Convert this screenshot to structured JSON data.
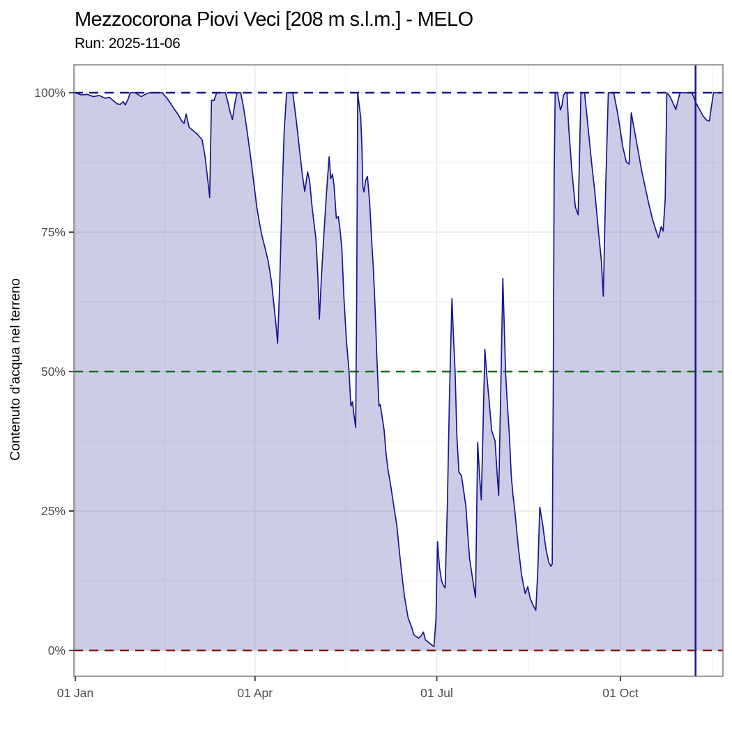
{
  "header": {
    "title": "Mezzocorona Piovi Veci [208 m s.l.m.] - MELO",
    "subtitle": "Run: 2025-11-06"
  },
  "colors": {
    "series_line": "#17178f",
    "series_fill": "rgba(22,22,143,0.22)",
    "threshold_100": "#17178f",
    "threshold_50": "#156e15",
    "threshold_0": "#8e1111",
    "run_date_line": "#17178f",
    "grid_major": "#e4e4e4",
    "grid_minor": "#f1f1f1",
    "panel_border": "#7e7e7e",
    "tick_mark": "#333333",
    "axis_text": "#4d4d4d",
    "title_text": "#000000",
    "panel_background": "#ffffff"
  },
  "chart_data": {
    "type": "area",
    "title": "Mezzocorona Piovi Veci [208 m s.l.m.] - MELO",
    "subtitle": "Run: 2025-11-06",
    "xlabel": "",
    "ylabel": "Contenuto d'acqua nel terreno",
    "x_unit": "day of year 2025 (0 = 01 Jan)",
    "x_range_days": [
      -0.7,
      324.4
    ],
    "ylim": [
      0,
      100
    ],
    "y_display_range": [
      -4.4,
      105
    ],
    "grid": true,
    "legend": "none",
    "x_ticks": [
      {
        "day": 0,
        "label": "01 Jan"
      },
      {
        "day": 90,
        "label": "01 Apr"
      },
      {
        "day": 181,
        "label": "01 Jul"
      },
      {
        "day": 273,
        "label": "01 Oct"
      }
    ],
    "x_minor_days": [
      45,
      135.5,
      227,
      319
    ],
    "y_ticks": [
      {
        "value": 0,
        "label": "0%"
      },
      {
        "value": 25,
        "label": "25%"
      },
      {
        "value": 50,
        "label": "50%"
      },
      {
        "value": 75,
        "label": "75%"
      },
      {
        "value": 100,
        "label": "100%"
      }
    ],
    "y_minor_values": [
      12.5,
      37.5,
      62.5,
      87.5
    ],
    "reference_lines": {
      "horizontal": [
        {
          "name": "saturation-100pct",
          "value": 100,
          "color": "#17178f",
          "style": "dashed"
        },
        {
          "name": "threshold-50pct",
          "value": 50,
          "color": "#156e15",
          "style": "dashed"
        },
        {
          "name": "threshold-0pct",
          "value": 0,
          "color": "#8e1111",
          "style": "dashed"
        }
      ],
      "vertical": [
        {
          "name": "run-date-line",
          "day": 310.6,
          "color": "#17178f",
          "style": "solid"
        }
      ]
    },
    "series": [
      {
        "name": "contenuto-acqua-terreno",
        "color": "#17178f",
        "fill": "rgba(22,22,143,0.22)",
        "points": [
          [
            -0.7,
            99.9
          ],
          [
            0,
            100
          ],
          [
            3,
            99.6
          ],
          [
            6,
            99.7
          ],
          [
            9,
            99.3
          ],
          [
            12,
            99.5
          ],
          [
            15,
            99
          ],
          [
            17,
            99.2
          ],
          [
            19,
            98.6
          ],
          [
            21,
            98
          ],
          [
            22.5,
            97.9
          ],
          [
            24,
            98.4
          ],
          [
            25,
            97.8
          ],
          [
            26.5,
            98.9
          ],
          [
            27.5,
            100
          ],
          [
            30,
            100
          ],
          [
            33,
            99.3
          ],
          [
            35,
            99.7
          ],
          [
            37,
            100
          ],
          [
            43.5,
            100
          ],
          [
            45.5,
            99.2
          ],
          [
            47.5,
            98.2
          ],
          [
            49.5,
            97.1
          ],
          [
            51.5,
            96.1
          ],
          [
            53.5,
            94.8
          ],
          [
            54.5,
            94.5
          ],
          [
            55.5,
            96.2
          ],
          [
            57,
            93.8
          ],
          [
            59,
            93.2
          ],
          [
            61,
            92.6
          ],
          [
            63.5,
            91.6
          ],
          [
            65,
            88.5
          ],
          [
            66.3,
            84.5
          ],
          [
            67.3,
            81.2
          ],
          [
            67.8,
            91
          ],
          [
            68.2,
            98.7
          ],
          [
            69.5,
            98.6
          ],
          [
            70.8,
            100
          ],
          [
            75.2,
            100
          ],
          [
            76.4,
            98.3
          ],
          [
            77.5,
            96.6
          ],
          [
            78.7,
            95.2
          ],
          [
            79.9,
            98.1
          ],
          [
            81,
            100
          ],
          [
            82.8,
            100
          ],
          [
            84,
            97.9
          ],
          [
            85.1,
            95.4
          ],
          [
            86.2,
            92.7
          ],
          [
            87.4,
            89.5
          ],
          [
            88.6,
            86.2
          ],
          [
            89.7,
            82.9
          ],
          [
            90.9,
            79.5
          ],
          [
            92.3,
            76.5
          ],
          [
            93.6,
            74.2
          ],
          [
            95,
            72.2
          ],
          [
            96.6,
            69.8
          ],
          [
            98.2,
            66.2
          ],
          [
            99.6,
            61.5
          ],
          [
            100.6,
            58
          ],
          [
            101.3,
            55.1
          ],
          [
            102.4,
            66
          ],
          [
            103.5,
            81
          ],
          [
            104.6,
            93
          ],
          [
            105.8,
            100
          ],
          [
            108.9,
            100
          ],
          [
            110.6,
            95.2
          ],
          [
            112.4,
            89.4
          ],
          [
            113.6,
            85.6
          ],
          [
            114.9,
            82.3
          ],
          [
            116.3,
            85.8
          ],
          [
            117.3,
            84.3
          ],
          [
            118.7,
            79.1
          ],
          [
            120.5,
            73.8
          ],
          [
            121.4,
            67.5
          ],
          [
            122.2,
            59.4
          ],
          [
            123.2,
            66.5
          ],
          [
            124.1,
            72.3
          ],
          [
            125.7,
            81.6
          ],
          [
            127.1,
            88.5
          ],
          [
            127.9,
            84.6
          ],
          [
            128.8,
            85.4
          ],
          [
            129.6,
            83.2
          ],
          [
            130.7,
            77.5
          ],
          [
            131.7,
            77.8
          ],
          [
            132.6,
            75.4
          ],
          [
            133.5,
            72
          ],
          [
            134.5,
            63.3
          ],
          [
            135.8,
            55.4
          ],
          [
            137,
            50.4
          ],
          [
            138,
            43.8
          ],
          [
            138.8,
            44.6
          ],
          [
            139.5,
            42.4
          ],
          [
            140.4,
            40
          ],
          [
            140.9,
            62
          ],
          [
            141.4,
            100
          ],
          [
            142.3,
            97.4
          ],
          [
            142.9,
            95.6
          ],
          [
            143.5,
            90.5
          ],
          [
            144,
            83.1
          ],
          [
            144.6,
            82.2
          ],
          [
            145.3,
            84.2
          ],
          [
            146.3,
            85
          ],
          [
            147.4,
            80.4
          ],
          [
            148.5,
            72.9
          ],
          [
            149.2,
            68.8
          ],
          [
            149.9,
            63.3
          ],
          [
            150.5,
            57.9
          ],
          [
            151,
            52.5
          ],
          [
            151.6,
            47.5
          ],
          [
            152.1,
            43.8
          ],
          [
            152.7,
            44.1
          ],
          [
            153.6,
            42
          ],
          [
            154.6,
            39.6
          ],
          [
            155.6,
            35.4
          ],
          [
            156.6,
            32.4
          ],
          [
            158.1,
            29.2
          ],
          [
            159.6,
            25.6
          ],
          [
            161,
            22.4
          ],
          [
            162.5,
            17
          ],
          [
            163.6,
            13.4
          ],
          [
            164.9,
            9.5
          ],
          [
            166.7,
            5.8
          ],
          [
            168.4,
            4.2
          ],
          [
            169.4,
            2.9
          ],
          [
            170.2,
            2.6
          ],
          [
            171.9,
            2.2
          ],
          [
            173.1,
            2.6
          ],
          [
            174.3,
            3.3
          ],
          [
            175.3,
            1.9
          ],
          [
            176.4,
            1.6
          ],
          [
            178.1,
            1.1
          ],
          [
            179.6,
            0.7
          ],
          [
            180.6,
            5.5
          ],
          [
            181.4,
            19.5
          ],
          [
            182.4,
            14.8
          ],
          [
            183.4,
            12.5
          ],
          [
            184.3,
            11.7
          ],
          [
            185.2,
            11.2
          ],
          [
            186.3,
            26
          ],
          [
            187.4,
            46
          ],
          [
            188.6,
            63.1
          ],
          [
            189.4,
            56
          ],
          [
            190.2,
            50
          ],
          [
            191.1,
            38.3
          ],
          [
            192.1,
            32
          ],
          [
            193.4,
            31.3
          ],
          [
            194.6,
            28.3
          ],
          [
            195.6,
            25.8
          ],
          [
            196.6,
            20.4
          ],
          [
            197.4,
            16.6
          ],
          [
            199.1,
            12.5
          ],
          [
            200.4,
            9.5
          ],
          [
            201.5,
            37.3
          ],
          [
            202.4,
            31.5
          ],
          [
            203.3,
            27
          ],
          [
            204.2,
            40.5
          ],
          [
            205.1,
            54
          ],
          [
            206.1,
            49.2
          ],
          [
            206.9,
            46
          ],
          [
            208.5,
            39.4
          ],
          [
            210.2,
            37.6
          ],
          [
            211.1,
            32.4
          ],
          [
            212,
            27.8
          ],
          [
            213,
            46
          ],
          [
            214.1,
            66.7
          ],
          [
            215.5,
            49.6
          ],
          [
            216.4,
            43.8
          ],
          [
            217.3,
            39
          ],
          [
            218.3,
            31.5
          ],
          [
            219.1,
            28.1
          ],
          [
            220.1,
            25
          ],
          [
            221.8,
            18.6
          ],
          [
            223.5,
            13.5
          ],
          [
            225.3,
            10.2
          ],
          [
            226.6,
            11.4
          ],
          [
            227.8,
            9.3
          ],
          [
            229.4,
            8
          ],
          [
            230.6,
            7.2
          ],
          [
            231.6,
            14.2
          ],
          [
            232.6,
            25.7
          ],
          [
            234,
            22.7
          ],
          [
            235.7,
            18.1
          ],
          [
            237.1,
            15.8
          ],
          [
            238.2,
            15.1
          ],
          [
            238.8,
            15.5
          ],
          [
            239.3,
            45
          ],
          [
            239.8,
            85
          ],
          [
            240.3,
            100
          ],
          [
            241.5,
            100
          ],
          [
            242.4,
            98
          ],
          [
            242.9,
            96.9
          ],
          [
            243.7,
            97.7
          ],
          [
            244.4,
            99.5
          ],
          [
            245.3,
            100
          ],
          [
            246.2,
            100
          ],
          [
            247.1,
            93.7
          ],
          [
            248.7,
            85.8
          ],
          [
            250.4,
            79.5
          ],
          [
            251.8,
            78.1
          ],
          [
            252.5,
            89
          ],
          [
            253.2,
            100
          ],
          [
            255,
            100
          ],
          [
            256.7,
            94.1
          ],
          [
            258.4,
            87.9
          ],
          [
            260.2,
            82
          ],
          [
            261.9,
            75.4
          ],
          [
            263.4,
            70
          ],
          [
            264.4,
            63.5
          ],
          [
            265.6,
            83
          ],
          [
            266.9,
            100
          ],
          [
            269.6,
            100
          ],
          [
            271.4,
            96.6
          ],
          [
            272.4,
            94.5
          ],
          [
            274.1,
            90.4
          ],
          [
            275.9,
            87.6
          ],
          [
            277.3,
            87.2
          ],
          [
            278.4,
            96.4
          ],
          [
            280.1,
            93
          ],
          [
            281.9,
            89.5
          ],
          [
            283.6,
            86
          ],
          [
            285.4,
            83
          ],
          [
            287.1,
            80.2
          ],
          [
            288.9,
            77.5
          ],
          [
            290.6,
            75.5
          ],
          [
            292,
            74
          ],
          [
            293.4,
            76
          ],
          [
            294.4,
            75.2
          ],
          [
            295.4,
            81
          ],
          [
            296.2,
            100
          ],
          [
            297.6,
            99.4
          ],
          [
            299,
            98.4
          ],
          [
            300.7,
            97
          ],
          [
            301.8,
            98.6
          ],
          [
            302.8,
            100
          ],
          [
            308.8,
            100
          ],
          [
            310.9,
            98.1
          ],
          [
            312.6,
            97
          ],
          [
            314.4,
            95.8
          ],
          [
            316.1,
            95.1
          ],
          [
            317.5,
            94.9
          ],
          [
            318.4,
            97.2
          ],
          [
            319.6,
            100
          ],
          [
            322,
            100
          ],
          [
            324.4,
            100
          ]
        ]
      }
    ]
  }
}
